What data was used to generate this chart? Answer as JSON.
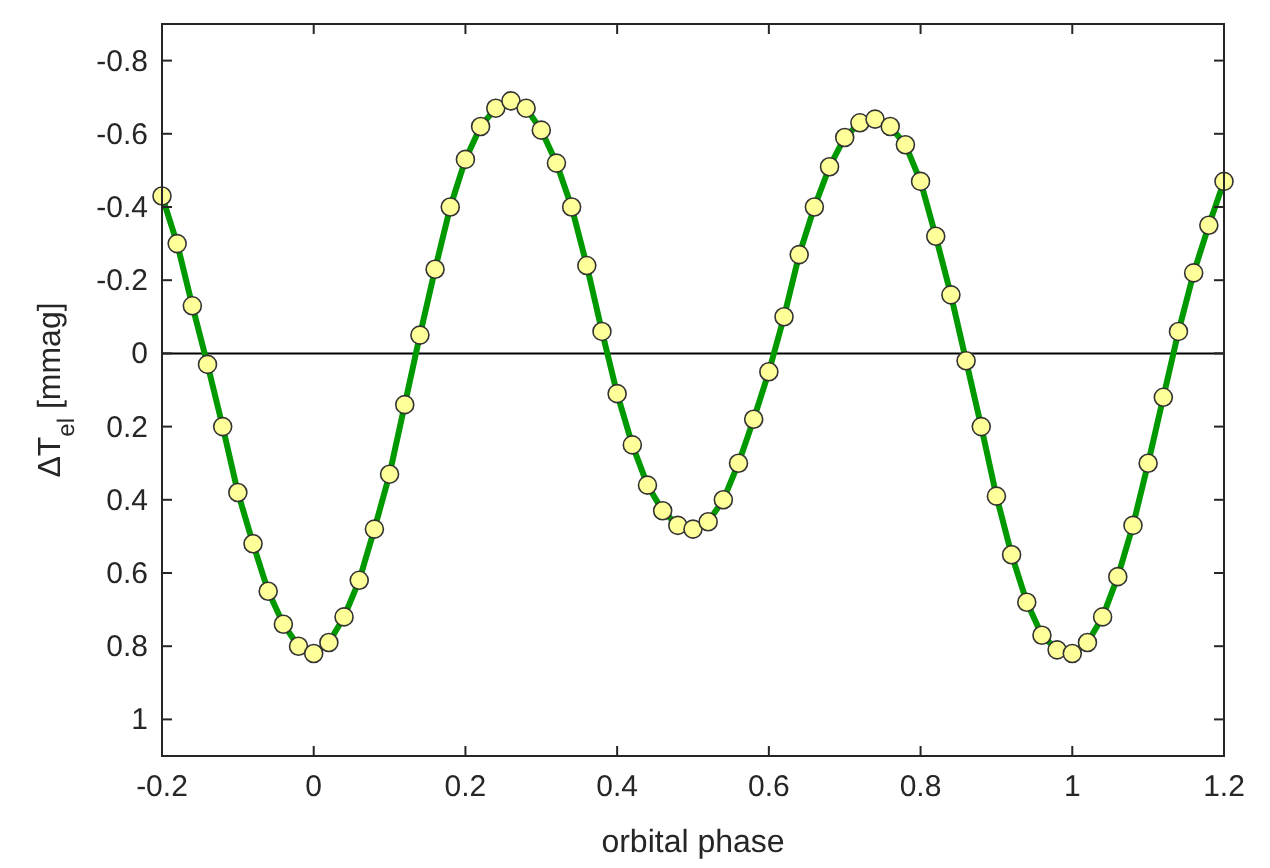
{
  "chart_data": {
    "type": "line",
    "xlabel": "orbital phase",
    "ylabel": "ΔT$_{el}$  [mmag]",
    "x": [
      -0.2,
      -0.18,
      -0.16,
      -0.14,
      -0.12,
      -0.1,
      -0.08,
      -0.06,
      -0.04,
      -0.02,
      0,
      0.02,
      0.04,
      0.06,
      0.08,
      0.1,
      0.12,
      0.14,
      0.16,
      0.18,
      0.2,
      0.22,
      0.24,
      0.26,
      0.28,
      0.3,
      0.32,
      0.34,
      0.36,
      0.38,
      0.4,
      0.42,
      0.44,
      0.46,
      0.48,
      0.5,
      0.52,
      0.54,
      0.56,
      0.58,
      0.6,
      0.62,
      0.64,
      0.66,
      0.68,
      0.7,
      0.72,
      0.74,
      0.76,
      0.78,
      0.8,
      0.82,
      0.84,
      0.86,
      0.88,
      0.9,
      0.92,
      0.94,
      0.96,
      0.98,
      1,
      1.02,
      1.04,
      1.06,
      1.08,
      1.1,
      1.12,
      1.14,
      1.16,
      1.18,
      1.2
    ],
    "series": [
      {
        "color": "#009900",
        "marker": "none",
        "values": [
          -0.43,
          -0.3,
          -0.13,
          0.03,
          0.2,
          0.38,
          0.52,
          0.65,
          0.74,
          0.8,
          0.82,
          0.79,
          0.72,
          0.62,
          0.48,
          0.33,
          0.14,
          -0.05,
          -0.23,
          -0.4,
          -0.53,
          -0.62,
          -0.67,
          -0.69,
          -0.67,
          -0.61,
          -0.52,
          -0.4,
          -0.24,
          -0.06,
          0.11,
          0.25,
          0.36,
          0.43,
          0.47,
          0.48,
          0.46,
          0.4,
          0.3,
          0.18,
          0.05,
          -0.1,
          -0.27,
          -0.4,
          -0.51,
          -0.59,
          -0.63,
          -0.64,
          -0.62,
          -0.57,
          -0.47,
          -0.32,
          -0.16,
          0.02,
          0.2,
          0.39,
          0.55,
          0.68,
          0.77,
          0.81,
          0.82,
          0.79,
          0.72,
          0.61,
          0.47,
          0.3,
          0.12,
          -0.06,
          -0.22,
          -0.35,
          -0.47
        ]
      },
      {
        "type": "scatter",
        "color": "#ffff99",
        "marker": "circle",
        "values": [
          -0.43,
          -0.3,
          -0.13,
          0.03,
          0.2,
          0.38,
          0.52,
          0.65,
          0.74,
          0.8,
          0.82,
          0.79,
          0.72,
          0.62,
          0.48,
          0.33,
          0.14,
          -0.05,
          -0.23,
          -0.4,
          -0.53,
          -0.62,
          -0.67,
          -0.69,
          -0.67,
          -0.61,
          -0.52,
          -0.4,
          -0.24,
          -0.06,
          0.11,
          0.25,
          0.36,
          0.43,
          0.47,
          0.48,
          0.46,
          0.4,
          0.3,
          0.18,
          0.05,
          -0.1,
          -0.27,
          -0.4,
          -0.51,
          -0.59,
          -0.63,
          -0.64,
          -0.62,
          -0.57,
          -0.47,
          -0.32,
          -0.16,
          0.02,
          0.2,
          0.39,
          0.55,
          0.68,
          0.77,
          0.81,
          0.82,
          0.79,
          0.72,
          0.61,
          0.47,
          0.3,
          0.12,
          -0.06,
          -0.22,
          -0.35,
          -0.47
        ]
      }
    ],
    "xlim": [
      -0.2,
      1.2
    ],
    "xticks": [
      -0.2,
      0,
      0.2,
      0.4,
      0.6,
      0.8,
      1,
      1.2
    ],
    "ylim": [
      1.1,
      -0.9
    ],
    "yticks": [
      1,
      0.8,
      0.6,
      0.4,
      0.2,
      0,
      -0.2,
      -0.4,
      -0.6,
      -0.8
    ],
    "ref_lines": [
      {
        "axis": "y",
        "value": 0,
        "color": "#000000"
      }
    ],
    "grid": false
  }
}
